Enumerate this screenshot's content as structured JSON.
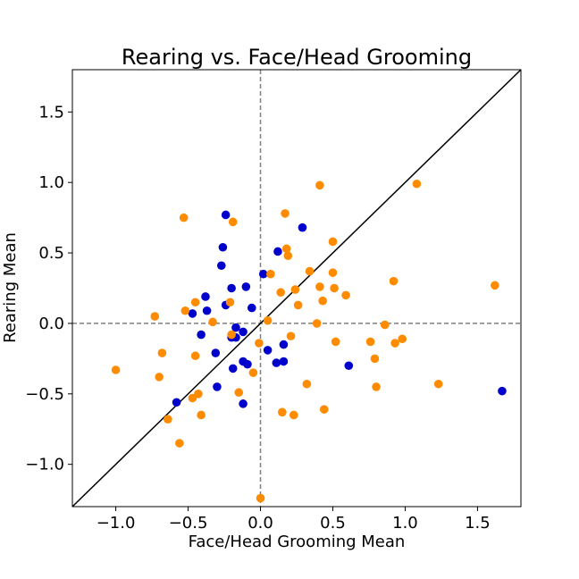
{
  "chart_data": {
    "type": "scatter",
    "title": "Rearing vs. Face/Head Grooming",
    "xlabel": "Face/Head Grooming Mean",
    "ylabel": "Rearing Mean",
    "xlim": [
      -1.3,
      1.8
    ],
    "ylim": [
      -1.3,
      1.8
    ],
    "xticks": [
      -1.0,
      -0.5,
      0.0,
      0.5,
      1.0,
      1.5
    ],
    "yticks": [
      -1.0,
      -0.5,
      0.0,
      0.5,
      1.0,
      1.5
    ],
    "xtick_labels": [
      "−1.0",
      "−0.5",
      "0.0",
      "0.5",
      "1.0",
      "1.5"
    ],
    "ytick_labels": [
      "−1.0",
      "−0.5",
      "0.0",
      "0.5",
      "1.0",
      "1.5"
    ],
    "grid": false,
    "reference_lines": {
      "diagonal": "y = x",
      "horizontal_zero": true,
      "vertical_zero": true
    },
    "series": [
      {
        "color": "#0000cd",
        "points": [
          [
            -0.24,
            0.77
          ],
          [
            0.29,
            0.68
          ],
          [
            -0.26,
            0.54
          ],
          [
            0.12,
            0.51
          ],
          [
            -0.27,
            0.41
          ],
          [
            0.02,
            0.35
          ],
          [
            -0.1,
            0.26
          ],
          [
            -0.2,
            0.25
          ],
          [
            -0.38,
            0.19
          ],
          [
            -0.24,
            0.13
          ],
          [
            -0.06,
            0.11
          ],
          [
            -0.37,
            0.09
          ],
          [
            -0.47,
            0.07
          ],
          [
            -0.17,
            -0.03
          ],
          [
            -0.12,
            -0.06
          ],
          [
            -0.41,
            -0.08
          ],
          [
            -0.2,
            -0.1
          ],
          [
            -0.17,
            -0.1
          ],
          [
            0.16,
            -0.15
          ],
          [
            0.05,
            -0.19
          ],
          [
            -0.31,
            -0.21
          ],
          [
            -0.12,
            -0.27
          ],
          [
            0.16,
            -0.27
          ],
          [
            0.11,
            -0.28
          ],
          [
            -0.09,
            -0.29
          ],
          [
            0.61,
            -0.3
          ],
          [
            -0.19,
            -0.32
          ],
          [
            -0.3,
            -0.45
          ],
          [
            1.67,
            -0.48
          ],
          [
            -0.58,
            -0.56
          ],
          [
            -0.12,
            -0.57
          ]
        ]
      },
      {
        "color": "#ff8c00",
        "points": [
          [
            0.41,
            0.98
          ],
          [
            1.08,
            0.99
          ],
          [
            0.17,
            0.78
          ],
          [
            -0.53,
            0.75
          ],
          [
            -0.19,
            0.72
          ],
          [
            0.5,
            0.58
          ],
          [
            0.18,
            0.53
          ],
          [
            0.19,
            0.48
          ],
          [
            0.34,
            0.37
          ],
          [
            0.5,
            0.36
          ],
          [
            0.07,
            0.35
          ],
          [
            0.92,
            0.3
          ],
          [
            1.62,
            0.27
          ],
          [
            0.41,
            0.26
          ],
          [
            0.51,
            0.25
          ],
          [
            0.24,
            0.24
          ],
          [
            0.14,
            0.22
          ],
          [
            0.59,
            0.2
          ],
          [
            0.43,
            0.16
          ],
          [
            -0.45,
            0.15
          ],
          [
            -0.21,
            0.15
          ],
          [
            0.26,
            0.13
          ],
          [
            -0.52,
            0.09
          ],
          [
            -0.73,
            0.05
          ],
          [
            0.05,
            0.02
          ],
          [
            -0.33,
            0.01
          ],
          [
            0.39,
            0.0
          ],
          [
            0.86,
            -0.01
          ],
          [
            -0.2,
            -0.08
          ],
          [
            0.21,
            -0.09
          ],
          [
            0.98,
            -0.11
          ],
          [
            0.52,
            -0.13
          ],
          [
            0.76,
            -0.13
          ],
          [
            0.93,
            -0.14
          ],
          [
            -0.01,
            -0.14
          ],
          [
            -0.68,
            -0.21
          ],
          [
            -0.45,
            -0.23
          ],
          [
            0.79,
            -0.25
          ],
          [
            -0.05,
            -0.35
          ],
          [
            -1.0,
            -0.33
          ],
          [
            -0.7,
            -0.38
          ],
          [
            0.32,
            -0.43
          ],
          [
            1.23,
            -0.43
          ],
          [
            0.8,
            -0.45
          ],
          [
            -0.15,
            -0.49
          ],
          [
            -0.43,
            -0.5
          ],
          [
            -0.47,
            -0.53
          ],
          [
            0.44,
            -0.61
          ],
          [
            0.15,
            -0.63
          ],
          [
            -0.41,
            -0.65
          ],
          [
            0.23,
            -0.65
          ],
          [
            -0.64,
            -0.68
          ],
          [
            -0.56,
            -0.85
          ],
          [
            0.0,
            -1.24
          ]
        ]
      }
    ]
  }
}
